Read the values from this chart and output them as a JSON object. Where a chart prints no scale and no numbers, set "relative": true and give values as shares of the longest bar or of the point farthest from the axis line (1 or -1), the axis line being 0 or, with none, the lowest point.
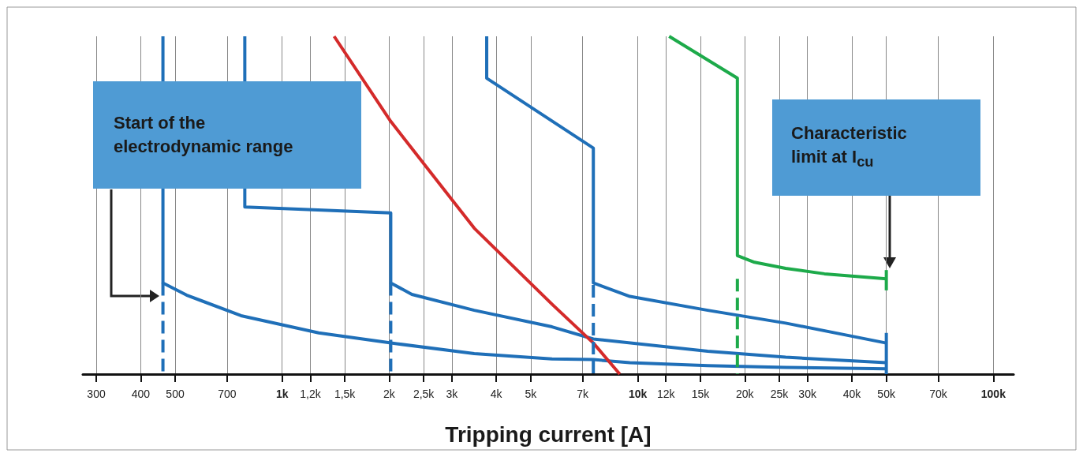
{
  "chart_data": {
    "type": "line",
    "relative": true,
    "log": "x",
    "xlabel": "Tripping current [A]",
    "xlim": [
      275,
      114000
    ],
    "xticks": [
      300,
      400,
      500,
      700,
      {
        "value": 1000,
        "label": "1k"
      },
      {
        "value": 1200,
        "label": "1,2k"
      },
      {
        "value": 1500,
        "label": "1,5k"
      },
      {
        "value": 2000,
        "label": "2k"
      },
      {
        "value": 2500,
        "label": "2,5k"
      },
      {
        "value": 3000,
        "label": "3k"
      },
      {
        "value": 4000,
        "label": "4k"
      },
      {
        "value": 5000,
        "label": "5k"
      },
      {
        "value": 7000,
        "label": "7k"
      },
      {
        "value": 10000,
        "label": "10k"
      },
      {
        "value": 12000,
        "label": "12k"
      },
      {
        "value": 15000,
        "label": "15k"
      },
      {
        "value": 20000,
        "label": "20k"
      },
      {
        "value": 25000,
        "label": "25k"
      },
      {
        "value": 30000,
        "label": "30k"
      },
      {
        "value": 40000,
        "label": "40k"
      },
      {
        "value": 50000,
        "label": "50k"
      },
      {
        "value": 70000,
        "label": "70k"
      },
      {
        "value": 100000,
        "label": "100k"
      }
    ],
    "grid": "x",
    "marker": "none",
    "line_style": "solid",
    "annotations": [
      "Start of the electrodynamic range",
      "Characteristic limit at I$_{cu}$"
    ],
    "series": [
      {
        "color": "#1f6fb8",
        "x": [
          462,
          462,
          538,
          766,
          1267,
          2099,
          3468,
          5738,
          7500,
          9503,
          15730,
          26050,
          50000
        ],
        "values": [
          1.0,
          0.27,
          0.234,
          0.173,
          0.122,
          0.09,
          0.061,
          0.045,
          0.043,
          0.034,
          0.025,
          0.02,
          0.016
        ]
      },
      {
        "color": "#1f6fb8",
        "x": [
          785,
          785,
          2020,
          2020,
          2316,
          3468,
          5738,
          7500,
          15730,
          26050,
          50000
        ],
        "values": [
          1.0,
          0.495,
          0.477,
          0.27,
          0.236,
          0.189,
          0.14,
          0.104,
          0.068,
          0.05,
          0.034
        ]
      },
      {
        "color": "#1f6fb8",
        "x": [
          3760,
          3760,
          7500,
          7500,
          9503,
          15730,
          26050,
          50000
        ],
        "values": [
          1.0,
          0.876,
          0.669,
          0.27,
          0.23,
          0.189,
          0.151,
          0.092
        ]
      },
      {
        "color": "#1daa4a",
        "x": [
          12250,
          19060,
          19060,
          21300,
          26050,
          33500,
          50000
        ],
        "values": [
          1.0,
          0.876,
          0.351,
          0.331,
          0.313,
          0.297,
          0.282
        ]
      },
      {
        "color": "#d42a2a",
        "x": [
          1400,
          2020,
          3468,
          5738,
          7500,
          8900
        ],
        "values": [
          1.0,
          0.748,
          0.432,
          0.207,
          0.092,
          0
        ]
      },
      {
        "color": "#1f6fb8",
        "line_style": "dashed",
        "x": [
          462,
          462
        ],
        "values": [
          0.27,
          0
        ]
      },
      {
        "color": "#1f6fb8",
        "line_style": "dashed",
        "x": [
          2020,
          2020
        ],
        "values": [
          0.27,
          0
        ]
      },
      {
        "color": "#1f6fb8",
        "line_style": "dashed",
        "x": [
          7500,
          7500
        ],
        "values": [
          0.264,
          0
        ]
      },
      {
        "color": "#1daa4a",
        "line_style": "dashed",
        "x": [
          19060,
          19060
        ],
        "values": [
          0.282,
          0
        ]
      },
      {
        "color": "#1f6fb8",
        "x": [
          50000,
          50000
        ],
        "values": [
          0.122,
          0
        ]
      },
      {
        "color": "#1daa4a",
        "x": [
          50000,
          50000
        ],
        "values": [
          0.308,
          0.248
        ]
      }
    ]
  }
}
